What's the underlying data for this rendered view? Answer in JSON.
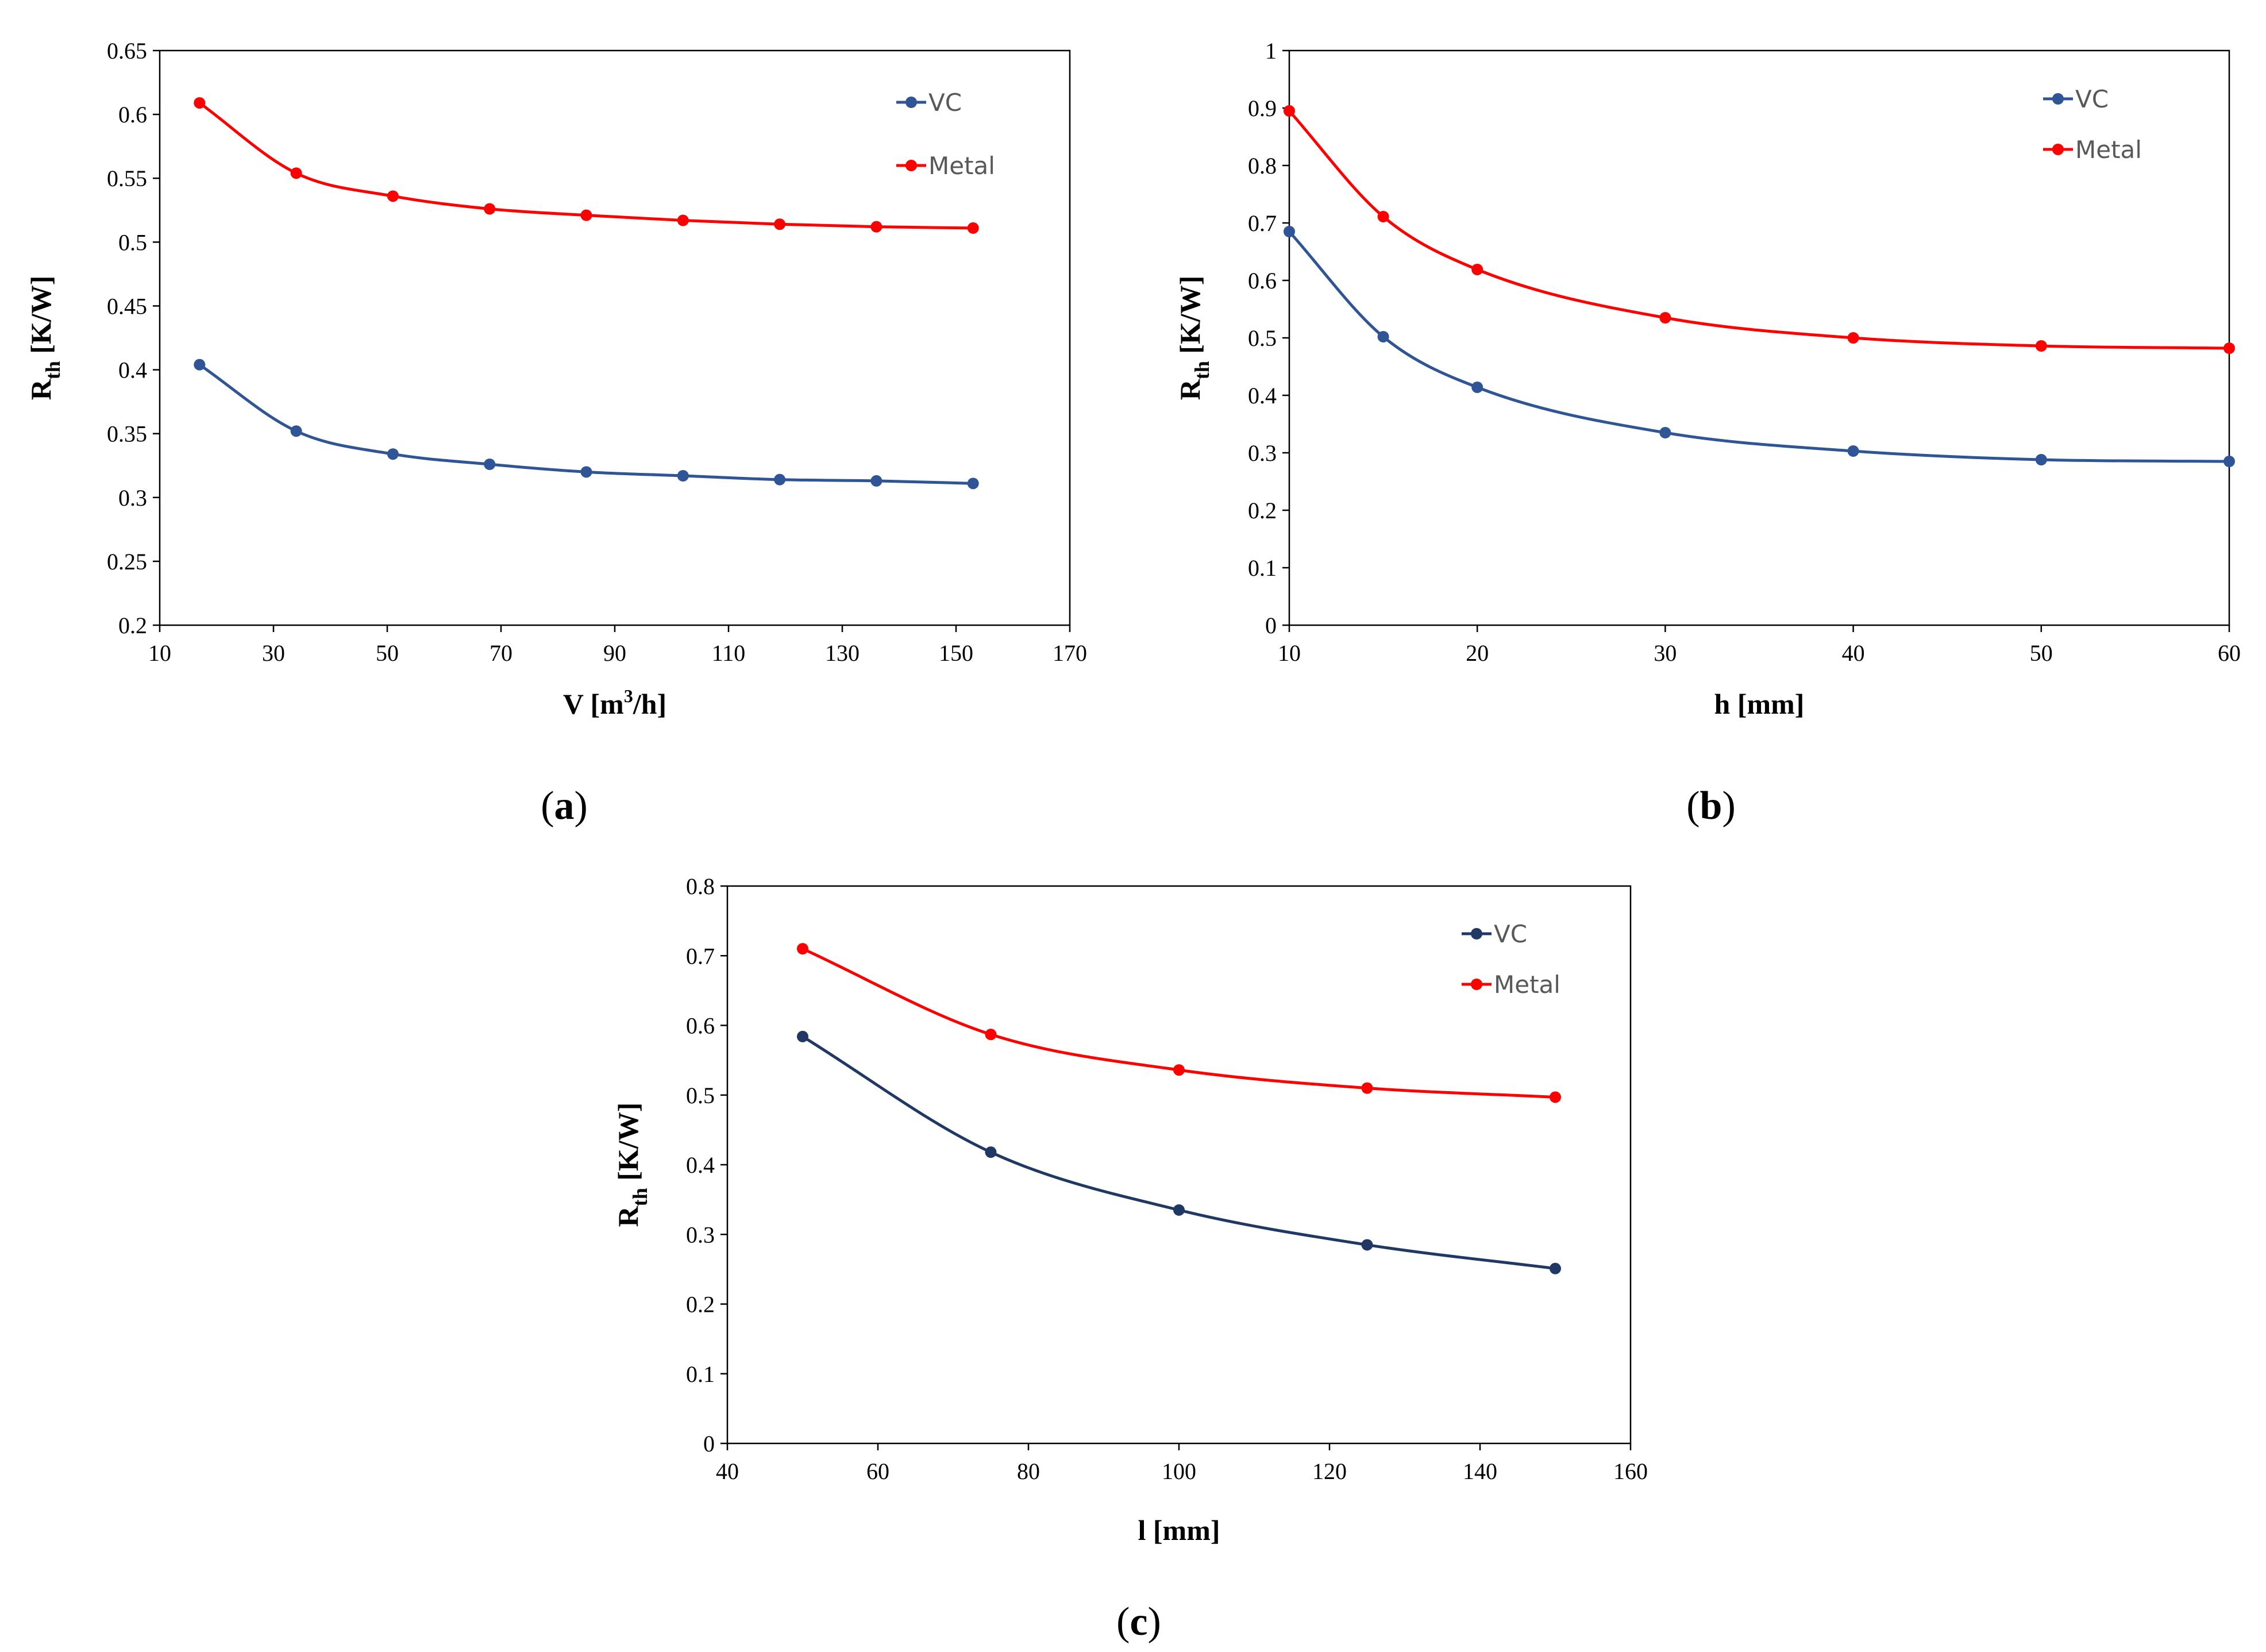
{
  "colors": {
    "vc": "#2f5597",
    "vc_c": "#1f3864",
    "metal": "#ff0000"
  },
  "chart_data": [
    {
      "type": "line",
      "panel_label": "a",
      "xlabel": "V [m³/h]",
      "xlabel_main": "V [m",
      "xlabel_sup": "3",
      "xlabel_tail": "/h]",
      "ylabel_main": "R",
      "ylabel_sub": "th",
      "ylabel_tail": " [K/W]",
      "xlim": [
        10,
        170
      ],
      "ylim": [
        0.2,
        0.65
      ],
      "xticks": [
        "10",
        "30",
        "50",
        "70",
        "90",
        "110",
        "130",
        "150",
        "170"
      ],
      "yticks": [
        "0.2",
        "0.25",
        "0.3",
        "0.35",
        "0.4",
        "0.45",
        "0.5",
        "0.55",
        "0.6",
        "0.65"
      ],
      "x": [
        17,
        34,
        51,
        68,
        85,
        102,
        119,
        136,
        153
      ],
      "series": [
        {
          "name": "VC",
          "values": [
            0.404,
            0.352,
            0.334,
            0.326,
            0.32,
            0.317,
            0.314,
            0.313,
            0.311
          ]
        },
        {
          "name": "Metal",
          "values": [
            0.609,
            0.554,
            0.536,
            0.526,
            0.521,
            0.517,
            0.514,
            0.512,
            0.511
          ]
        }
      ]
    },
    {
      "type": "line",
      "panel_label": "b",
      "xlabel": "h [mm]",
      "xlabel_main": "h [mm]",
      "xlabel_sup": "",
      "xlabel_tail": "",
      "ylabel_main": "R",
      "ylabel_sub": "th",
      "ylabel_tail": " [K/W]",
      "xlim": [
        10,
        60
      ],
      "ylim": [
        0,
        1
      ],
      "xticks": [
        "10",
        "20",
        "30",
        "40",
        "50",
        "60"
      ],
      "yticks": [
        "0",
        "0.1",
        "0.2",
        "0.3",
        "0.4",
        "0.5",
        "0.6",
        "0.7",
        "0.8",
        "0.9",
        "1"
      ],
      "x": [
        10,
        15,
        20,
        30,
        40,
        50,
        60
      ],
      "series": [
        {
          "name": "VC",
          "values": [
            0.685,
            0.502,
            0.414,
            0.335,
            0.303,
            0.288,
            0.285
          ]
        },
        {
          "name": "Metal",
          "values": [
            0.895,
            0.711,
            0.619,
            0.535,
            0.5,
            0.486,
            0.482
          ]
        }
      ]
    },
    {
      "type": "line",
      "panel_label": "c",
      "xlabel": "l [mm]",
      "xlabel_main": "l [mm]",
      "xlabel_sup": "",
      "xlabel_tail": "",
      "ylabel_main": "R",
      "ylabel_sub": "th",
      "ylabel_tail": " [K/W]",
      "xlim": [
        40,
        160
      ],
      "ylim": [
        0,
        0.8
      ],
      "xticks": [
        "40",
        "60",
        "80",
        "100",
        "120",
        "140",
        "160"
      ],
      "yticks": [
        "0",
        "0.1",
        "0.2",
        "0.3",
        "0.4",
        "0.5",
        "0.6",
        "0.7",
        "0.8"
      ],
      "x": [
        50,
        75,
        100,
        125,
        150
      ],
      "series": [
        {
          "name": "VC",
          "values": [
            0.584,
            0.418,
            0.335,
            0.285,
            0.251
          ]
        },
        {
          "name": "Metal",
          "values": [
            0.71,
            0.587,
            0.536,
            0.51,
            0.497
          ]
        }
      ]
    }
  ]
}
